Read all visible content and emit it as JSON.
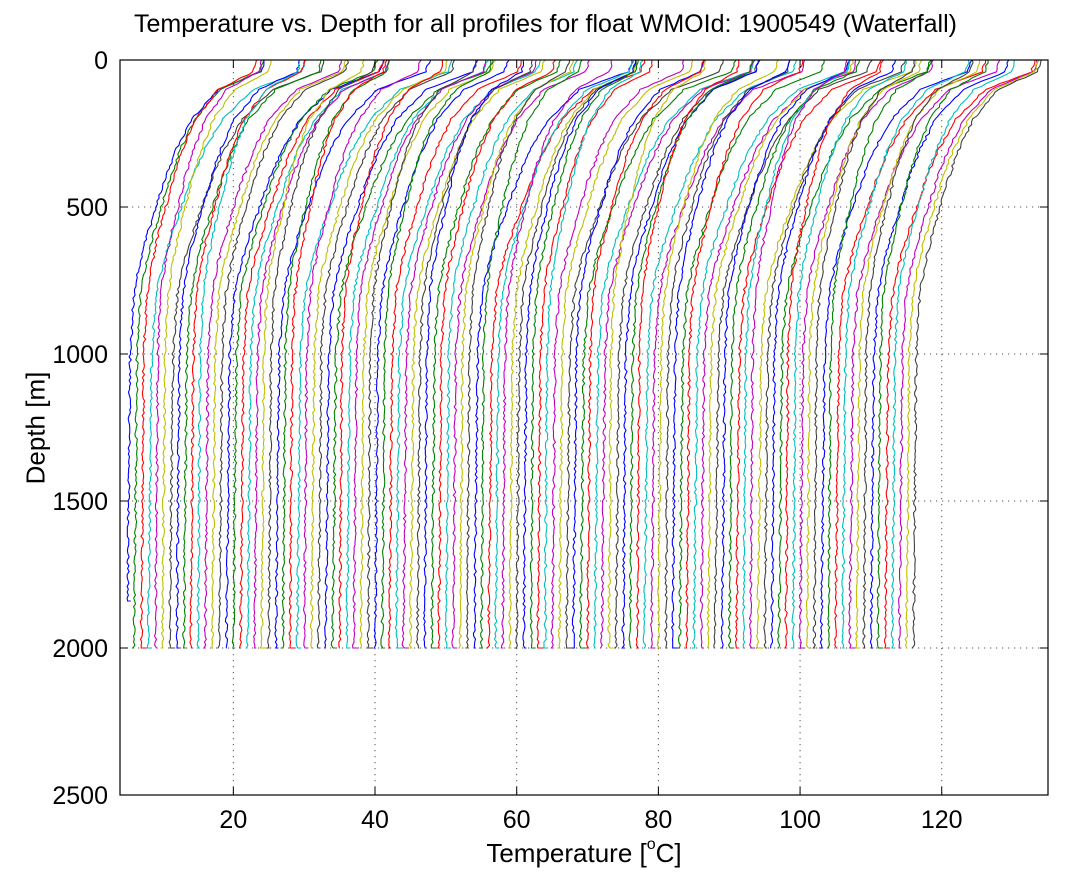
{
  "chart_data": {
    "type": "line",
    "title": "Temperature vs. Depth for all profiles for float WMOId: 1900549 (Waterfall)",
    "xlabel": {
      "prefix": "Temperature [",
      "superscript": "o",
      "suffix": "C]"
    },
    "ylabel": "Depth [m]",
    "xlim": [
      4,
      135
    ],
    "ylim": [
      0,
      2500
    ],
    "y_reversed": true,
    "x_ticks": [
      20,
      40,
      60,
      80,
      100,
      120
    ],
    "y_ticks": [
      0,
      500,
      1000,
      1500,
      2000,
      2500
    ],
    "grid": true,
    "waterfall": {
      "profile_count": 112,
      "offset_per_profile": 1.0,
      "first_deep_temperature": 5.0,
      "max_depth": 2000,
      "color_cycle": [
        "#0000ff",
        "#008000",
        "#ff0000",
        "#00bfbf",
        "#bf00bf",
        "#bfbf00",
        "#404040"
      ],
      "representative_profile": {
        "depth": [
          0,
          40,
          100,
          200,
          300,
          400,
          500,
          600,
          700,
          800,
          1000,
          1500,
          2000
        ],
        "temperature_anomaly": [
          18,
          17.5,
          12,
          8.5,
          6.5,
          5,
          3.8,
          2.6,
          1.6,
          0.9,
          0.4,
          0.2,
          0.0
        ]
      }
    }
  }
}
